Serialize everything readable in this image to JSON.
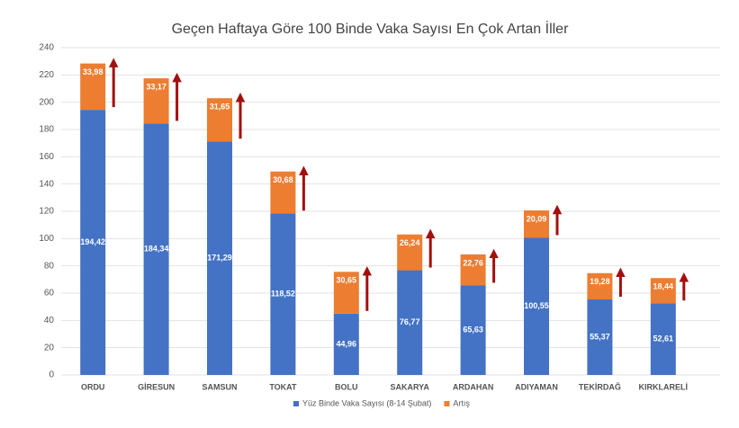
{
  "chart_data": {
    "type": "stacked_bar",
    "title": "Geçen Haftaya Göre 100 Binde Vaka Sayısı En Çok Artan İller",
    "categories": [
      "ORDU",
      "GİRESUN",
      "SAMSUN",
      "TOKAT",
      "BOLU",
      "SAKARYA",
      "ARDAHAN",
      "ADIYAMAN",
      "TEKİRDAĞ",
      "KIRKLARELİ"
    ],
    "series": [
      {
        "name": "Yüz Binde Vaka Sayısı (8-14 Şubat)",
        "color": "#4472c4",
        "values": [
          194.42,
          184.34,
          171.29,
          118.52,
          44.96,
          76.77,
          65.63,
          100.55,
          55.37,
          52.61
        ],
        "value_labels": [
          "194,42",
          "184,34",
          "171,29",
          "118,52",
          "44,96",
          "76,77",
          "65,63",
          "100,55",
          "55,37",
          "52,61"
        ]
      },
      {
        "name": "Artış",
        "color": "#ed7d31",
        "values": [
          33.98,
          33.17,
          31.65,
          30.68,
          30.65,
          26.24,
          22.76,
          20.09,
          19.28,
          18.44
        ],
        "value_labels": [
          "33,98",
          "33,17",
          "31,65",
          "30,68",
          "30,65",
          "26,24",
          "22,76",
          "20,09",
          "19,28",
          "18,44"
        ]
      }
    ],
    "ylim": [
      0,
      240
    ],
    "yticks": [
      0,
      20,
      40,
      60,
      80,
      100,
      120,
      140,
      160,
      180,
      200,
      220,
      240
    ],
    "grid": true
  }
}
